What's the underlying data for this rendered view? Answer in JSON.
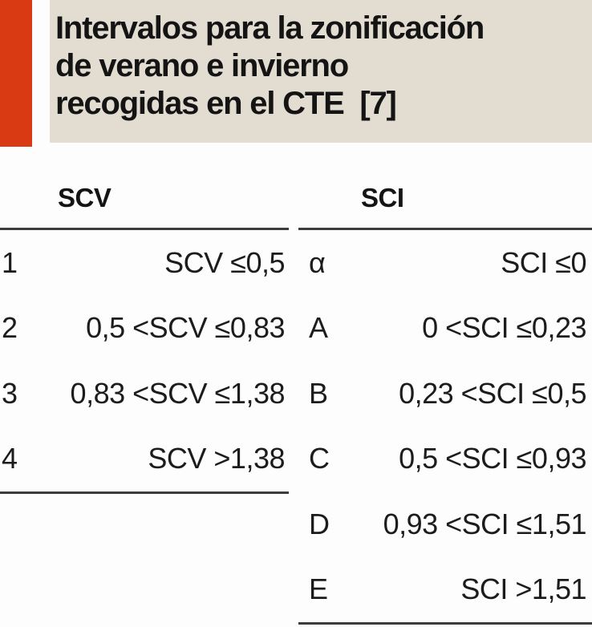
{
  "caption": {
    "lines": [
      "Intervalos para la zonificación",
      "de verano e invierno",
      "recogidas en el CTE  [7]"
    ]
  },
  "colors": {
    "accent": "#da3a13",
    "caption_background": "#e3dcd0",
    "text": "#1a1a1a",
    "rule": "#3c3c3c"
  },
  "tables": {
    "scv": {
      "header": "SCV",
      "rows": [
        {
          "zone": "1",
          "interval": "SCV ≤0,5"
        },
        {
          "zone": "2",
          "interval": "0,5 <SCV ≤0,83"
        },
        {
          "zone": "3",
          "interval": "0,83 <SCV ≤1,38"
        },
        {
          "zone": "4",
          "interval": "SCV >1,38"
        }
      ]
    },
    "sci": {
      "header": "SCI",
      "rows": [
        {
          "zone": "α",
          "interval": "SCI ≤0"
        },
        {
          "zone": "A",
          "interval": "0 <SCI ≤0,23"
        },
        {
          "zone": "B",
          "interval": "0,23 <SCI ≤0,5"
        },
        {
          "zone": "C",
          "interval": "0,5 <SCI ≤0,93"
        },
        {
          "zone": "D",
          "interval": "0,93 <SCI ≤1,51"
        },
        {
          "zone": "E",
          "interval": "SCI >1,51"
        }
      ]
    }
  }
}
